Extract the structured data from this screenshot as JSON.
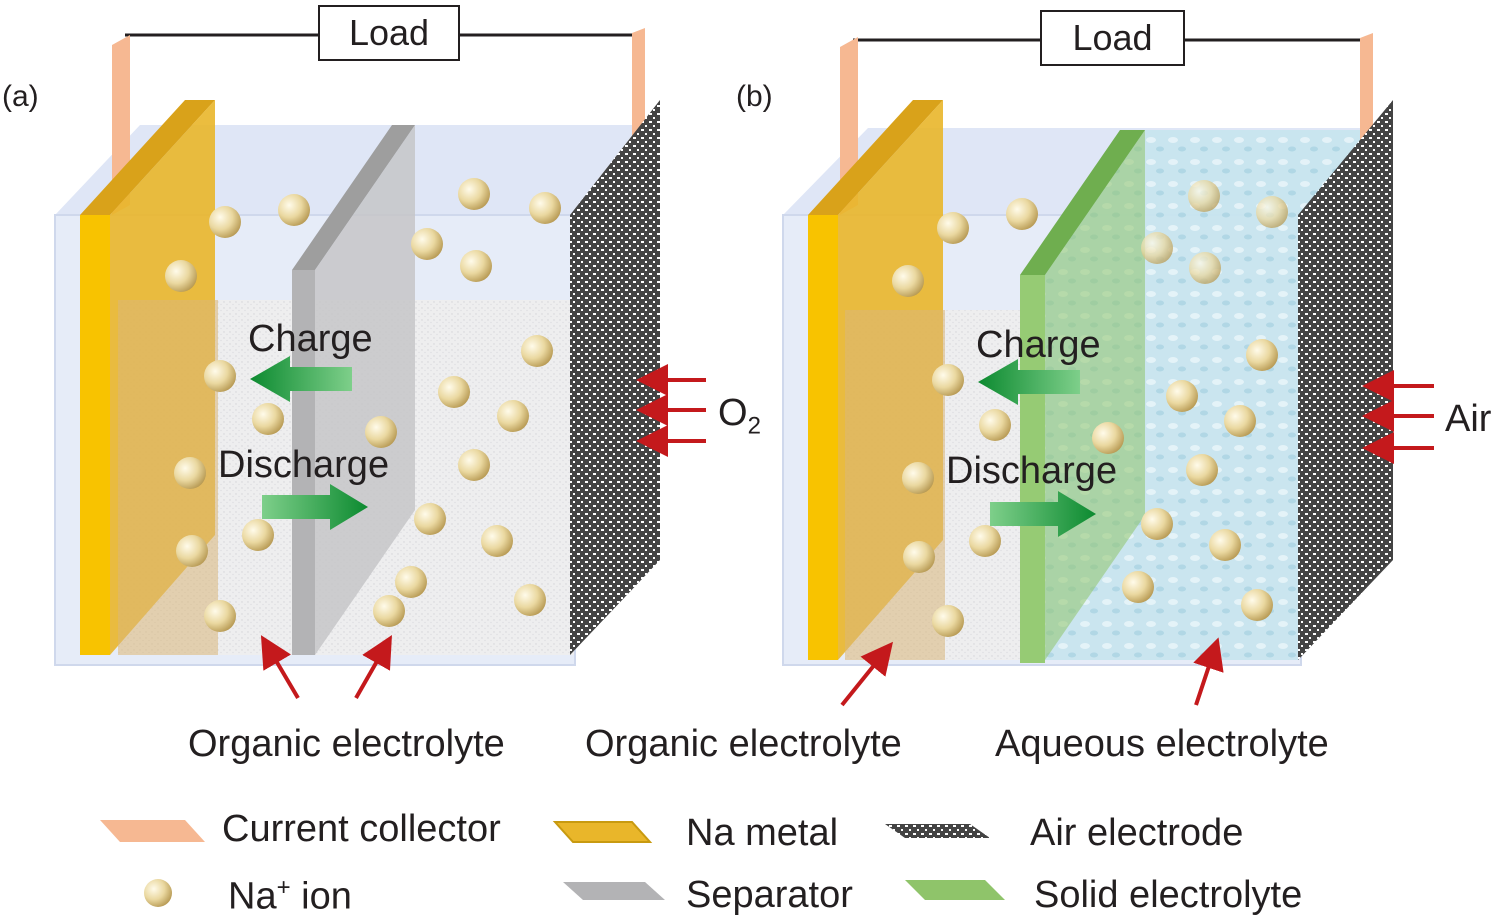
{
  "panel_a": {
    "tag": "(a)",
    "load": "Load",
    "charge": "Charge",
    "discharge": "Discharge",
    "gas_main": "O",
    "gas_sub": "2",
    "electrolyte_label": "Organic electrolyte"
  },
  "panel_b": {
    "tag": "(b)",
    "load": "Load",
    "charge": "Charge",
    "discharge": "Discharge",
    "gas": "Air",
    "organic_label": "Organic electrolyte",
    "aqueous_label": "Aqueous electrolyte"
  },
  "legend": {
    "current_collector": "Current collector",
    "na_metal": "Na metal",
    "air_electrode": "Air electrode",
    "na_ion_main": "Na",
    "na_ion_sup": "+",
    "na_ion_rest": " ion",
    "separator": "Separator",
    "solid_electrolyte": "Solid electrolyte"
  },
  "colors": {
    "current_collector": "#f6b892",
    "na_metal": "#f5c000",
    "na_metal_dark": "#d9a21a",
    "separator": "#bdbdbd",
    "solid_electrolyte": "#8fc46a",
    "aqueous": "#bfe1ee",
    "cell_glass": "#e4ebf8",
    "arrow_green": "#1a9a3c",
    "arrow_red": "#c4191c",
    "ion": "#e8d7a0",
    "label_text": "#231f20"
  },
  "icons": [
    "na-ion-sphere",
    "charge-arrow-icon",
    "discharge-arrow-icon",
    "gas-inlet-arrow-icon",
    "pointer-arrow-icon"
  ]
}
